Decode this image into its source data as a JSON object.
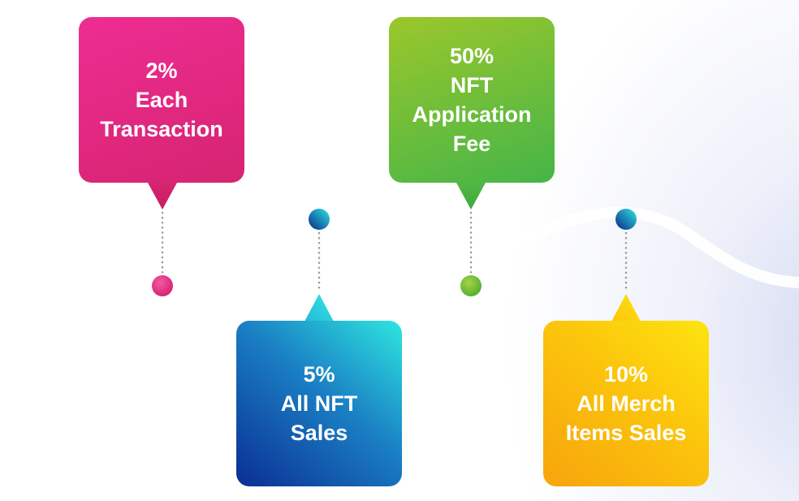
{
  "cards": [
    {
      "percent": "2%",
      "line1": "Each",
      "line2": "Transaction",
      "line3": ""
    },
    {
      "percent": "50%",
      "line1": "NFT",
      "line2": "Application",
      "line3": "Fee"
    },
    {
      "percent": "5%",
      "line1": "All NFT",
      "line2": "Sales",
      "line3": ""
    },
    {
      "percent": "10%",
      "line1": "All Merch",
      "line2": "Items Sales",
      "line3": ""
    }
  ],
  "colors": {
    "pink": "#e8297f",
    "green": "#6fbe3a",
    "blue": "#1a6fc0",
    "yellow": "#f9c10c",
    "dot_navy": "#0e3a8a",
    "dot_cyan": "#2fd8e8",
    "connector_dots": "#9a9a9a"
  }
}
